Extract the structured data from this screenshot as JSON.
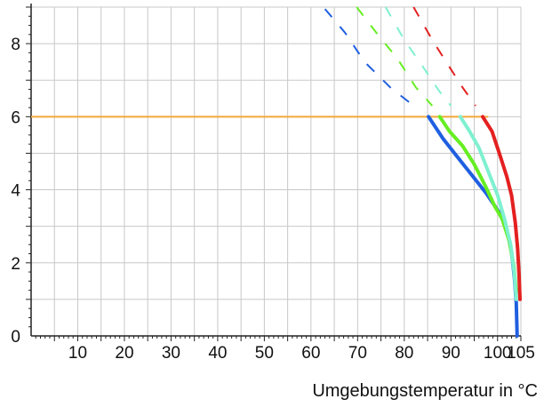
{
  "chart_data": {
    "type": "line",
    "title": "",
    "xlabel": "Umgebungstemperatur in °C",
    "ylabel": "",
    "xlim": [
      0,
      105
    ],
    "ylim": [
      0,
      9
    ],
    "grid": true,
    "legend": "none",
    "x_ticks": [
      "10",
      "20",
      "30",
      "40",
      "50",
      "60",
      "70",
      "80",
      "90",
      "100",
      "105"
    ],
    "x_tick_values": [
      10,
      20,
      30,
      40,
      50,
      60,
      70,
      80,
      90,
      100,
      105
    ],
    "y_ticks": [
      "0",
      "2",
      "4",
      "6",
      "8"
    ],
    "y_tick_values": [
      0,
      2,
      4,
      6,
      8
    ],
    "reference_line": {
      "y": 6,
      "x_from": 0,
      "x_to": 98,
      "color": "#f5a83a"
    },
    "series": [
      {
        "color": "#1f5fe0",
        "solid": [
          [
            85.2,
            6.0
          ],
          [
            88.3,
            5.4
          ],
          [
            91.4,
            4.9
          ],
          [
            94.5,
            4.4
          ],
          [
            97.6,
            3.9
          ],
          [
            100.5,
            3.35
          ],
          [
            102.0,
            2.9
          ],
          [
            103.0,
            2.3
          ],
          [
            103.6,
            1.6
          ],
          [
            104.0,
            0.9
          ],
          [
            104.2,
            0.0
          ]
        ],
        "dashed": [
          [
            63.0,
            8.95
          ],
          [
            67.3,
            8.3
          ],
          [
            71.5,
            7.5
          ],
          [
            77.0,
            6.8
          ],
          [
            81.0,
            6.4
          ]
        ]
      },
      {
        "color": "#66ee22",
        "solid": [
          [
            87.6,
            6.0
          ],
          [
            89.7,
            5.6
          ],
          [
            92.5,
            5.2
          ],
          [
            95.0,
            4.7
          ],
          [
            97.4,
            4.1
          ],
          [
            99.4,
            3.55
          ],
          [
            101.0,
            3.2
          ],
          [
            102.5,
            2.6
          ],
          [
            103.5,
            1.9
          ],
          [
            104.0,
            1.2
          ]
        ],
        "dashed": [
          [
            69.8,
            9.0
          ],
          [
            74.6,
            8.2
          ],
          [
            78.5,
            7.6
          ],
          [
            82.5,
            6.8
          ],
          [
            86.0,
            6.3
          ]
        ]
      },
      {
        "color": "#7ff0d0",
        "solid": [
          [
            92.0,
            6.0
          ],
          [
            94.0,
            5.6
          ],
          [
            96.0,
            5.15
          ],
          [
            98.0,
            4.5
          ],
          [
            100.0,
            3.85
          ],
          [
            101.5,
            3.2
          ],
          [
            102.8,
            2.5
          ],
          [
            103.6,
            1.7
          ],
          [
            104.0,
            1.0
          ]
        ],
        "dashed": [
          [
            76.0,
            9.0
          ],
          [
            80.0,
            8.1
          ],
          [
            83.3,
            7.5
          ],
          [
            87.5,
            6.7
          ],
          [
            90.0,
            6.3
          ]
        ]
      },
      {
        "color": "#e42020",
        "solid": [
          [
            96.8,
            6.0
          ],
          [
            98.8,
            5.6
          ],
          [
            100.5,
            4.95
          ],
          [
            102.0,
            4.35
          ],
          [
            103.0,
            3.85
          ],
          [
            103.8,
            3.1
          ],
          [
            104.3,
            2.4
          ],
          [
            104.6,
            1.7
          ],
          [
            104.8,
            1.0
          ]
        ],
        "dashed": [
          [
            82.0,
            9.0
          ],
          [
            86.0,
            8.1
          ],
          [
            89.0,
            7.5
          ],
          [
            92.5,
            6.8
          ],
          [
            95.3,
            6.3
          ]
        ]
      }
    ]
  }
}
